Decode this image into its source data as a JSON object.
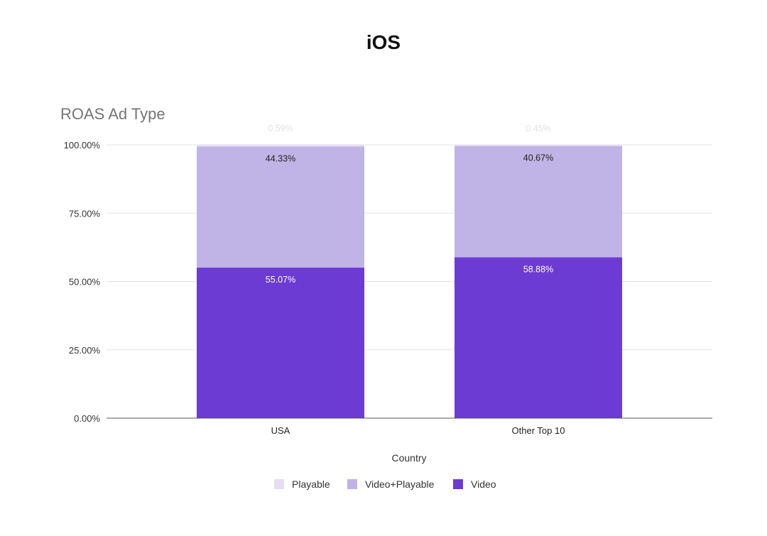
{
  "page_title": "iOS",
  "chart_data": {
    "type": "bar",
    "stacked": true,
    "title": "ROAS Ad Type",
    "xlabel": "Country",
    "ylabel": "",
    "ylim": [
      0,
      100
    ],
    "yticks": [
      "0.00%",
      "25.00%",
      "50.00%",
      "75.00%",
      "100.00%"
    ],
    "grid": true,
    "legend_position": "bottom",
    "categories": [
      "USA",
      "Other Top 10"
    ],
    "series": [
      {
        "name": "Video",
        "values": [
          55.07,
          58.88
        ],
        "labels": [
          "55.07%",
          "58.88%"
        ],
        "color": "#6c3bd4",
        "label_color": "#ffffff"
      },
      {
        "name": "Video+Playable",
        "values": [
          44.33,
          40.67
        ],
        "labels": [
          "44.33%",
          "40.67%"
        ],
        "color": "#c0b3e6",
        "label_color": "#222222"
      },
      {
        "name": "Playable",
        "values": [
          0.59,
          0.45
        ],
        "labels": [
          "0.59%",
          "0.45%"
        ],
        "color": "#e4ddf5",
        "label_color": "#e2e2e2"
      }
    ]
  }
}
